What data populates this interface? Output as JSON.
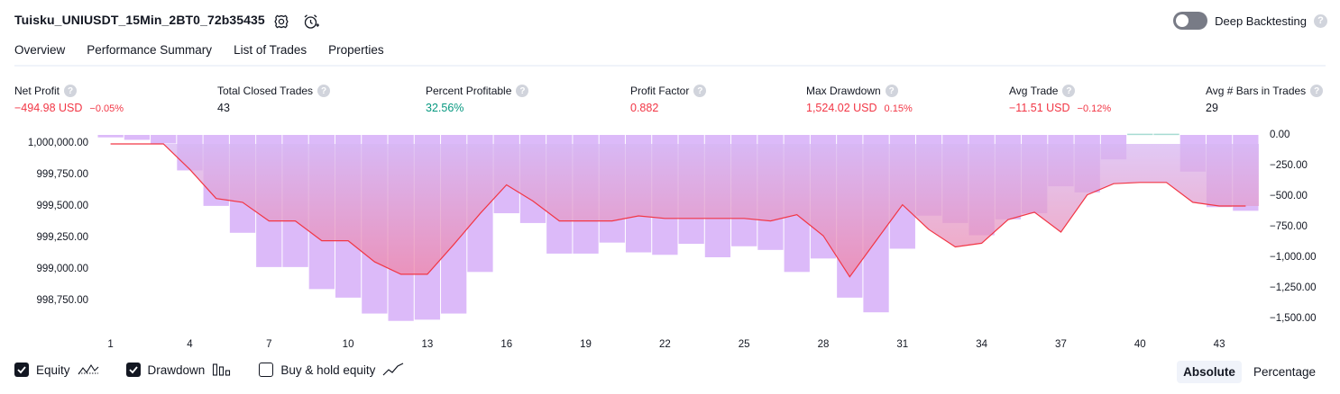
{
  "header": {
    "title": "Tuisku_UNIUSDT_15Min_2BT0_72b35435",
    "deep_backtesting_label": "Deep Backtesting",
    "deep_backtesting_enabled": false,
    "help_glyph": "?"
  },
  "tabs": [
    {
      "label": "Overview",
      "active": true
    },
    {
      "label": "Performance Summary",
      "active": false
    },
    {
      "label": "List of Trades",
      "active": false
    },
    {
      "label": "Properties",
      "active": false
    }
  ],
  "metrics": [
    {
      "label": "Net Profit",
      "value": "−494.98 USD",
      "sub": "−0.05%",
      "color": "#f23645"
    },
    {
      "label": "Total Closed Trades",
      "value": "43",
      "sub": "",
      "color": "#131722"
    },
    {
      "label": "Percent Profitable",
      "value": "32.56%",
      "sub": "",
      "color": "#089981"
    },
    {
      "label": "Profit Factor",
      "value": "0.882",
      "sub": "",
      "color": "#f23645"
    },
    {
      "label": "Max Drawdown",
      "value": "1,524.02 USD",
      "sub": "0.15%",
      "color": "#f23645"
    },
    {
      "label": "Avg Trade",
      "value": "−11.51 USD",
      "sub": "−0.12%",
      "color": "#f23645"
    },
    {
      "label": "Avg # Bars in Trades",
      "value": "29",
      "sub": "",
      "color": "#131722"
    }
  ],
  "chart_data": {
    "type": "line",
    "x_ticks": [
      "1",
      "4",
      "7",
      "10",
      "13",
      "16",
      "19",
      "22",
      "25",
      "28",
      "31",
      "34",
      "37",
      "40",
      "43"
    ],
    "left_ticks": [
      "1,000,000.00",
      "999,750.00",
      "999,500.00",
      "999,250.00",
      "999,000.00",
      "998,750.00"
    ],
    "right_ticks": [
      "0.00",
      "−250.00",
      "−500.00",
      "−750.00",
      "−1,000.00",
      "−1,250.00",
      "−1,500.00"
    ],
    "left_range": [
      998650,
      1000080
    ],
    "right_range": [
      -1500,
      0
    ],
    "equity": [
      1000000,
      1000000,
      1000000,
      999795,
      999560,
      999530,
      999380,
      999380,
      999220,
      999220,
      999050,
      998950,
      998950,
      999190,
      999440,
      999670,
      999540,
      999380,
      999380,
      999380,
      999420,
      999400,
      999400,
      999400,
      999400,
      999380,
      999430,
      999260,
      998930,
      999220,
      999510,
      999310,
      999170,
      999200,
      999390,
      999450,
      999290,
      999590,
      999680,
      999690,
      999690,
      999530,
      999500,
      999500
    ],
    "drawdown": [
      -20,
      -40,
      -70,
      -290,
      -580,
      -800,
      -1080,
      -1080,
      -1260,
      -1330,
      -1460,
      -1520,
      -1510,
      -1460,
      -1120,
      -640,
      -720,
      -970,
      -970,
      -880,
      -960,
      -980,
      -890,
      -1000,
      -910,
      -940,
      -1120,
      -1010,
      -1330,
      -1450,
      -930,
      -660,
      -720,
      -820,
      -690,
      -640,
      -420,
      -470,
      -200,
      10,
      10,
      -300,
      -590,
      -620
    ],
    "series": [
      {
        "name": "Equity",
        "color": "#f23645"
      },
      {
        "name": "Drawdown",
        "color": "#d1a1f7"
      }
    ]
  },
  "legend": {
    "items": [
      {
        "label": "Equity",
        "checked": true,
        "icon": "equity-line-icon"
      },
      {
        "label": "Drawdown",
        "checked": true,
        "icon": "drawdown-bars-icon"
      },
      {
        "label": "Buy & hold equity",
        "checked": false,
        "icon": "buy-hold-line-icon"
      }
    ],
    "modes": [
      {
        "label": "Absolute",
        "active": true
      },
      {
        "label": "Percentage",
        "active": false
      }
    ]
  }
}
